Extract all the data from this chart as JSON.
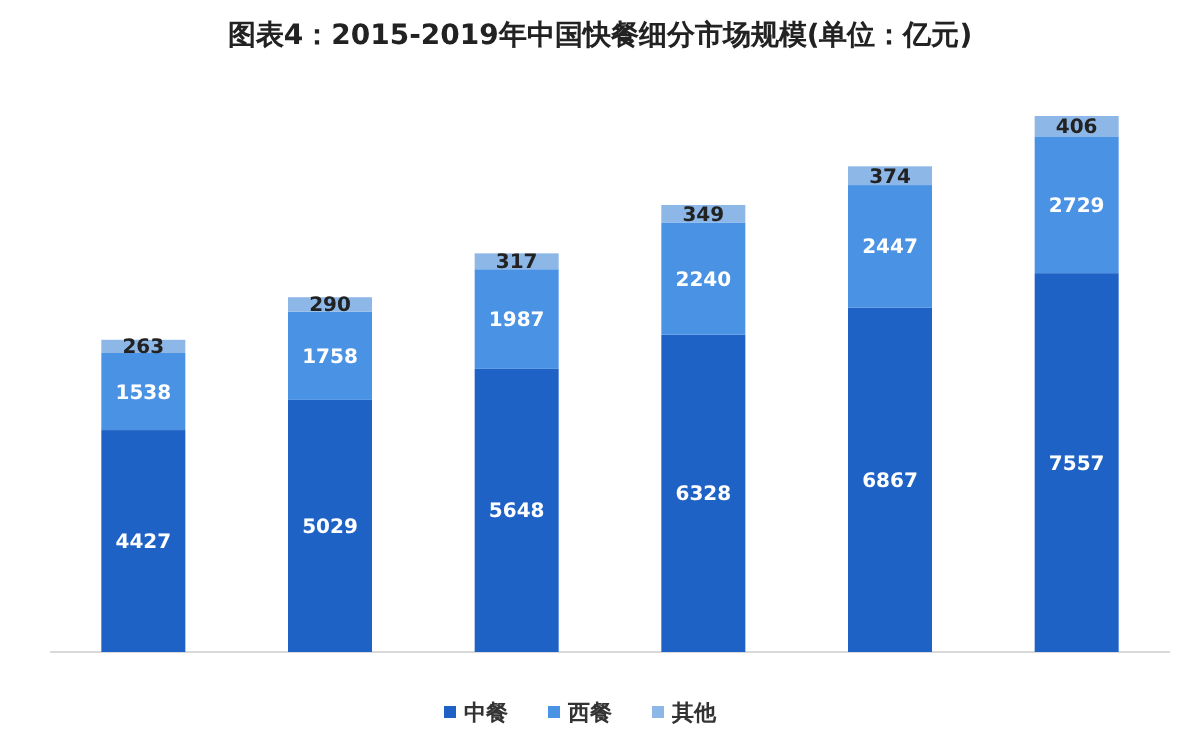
{
  "chart_data": {
    "type": "bar",
    "stacked": true,
    "data_labels": true,
    "legend": "bottom",
    "title": "图表4：2015-2019年中国快餐细分市场规模(单位：亿元)",
    "categories": [
      null,
      null,
      null,
      null,
      null,
      null
    ],
    "series": [
      {
        "name": "中餐",
        "color": "#1f62c6",
        "values": [
          4427,
          5029,
          5648,
          6328,
          6867,
          7557
        ]
      },
      {
        "name": "西餐",
        "color": "#4a92e4",
        "values": [
          1538,
          1758,
          1987,
          2240,
          2447,
          2729
        ]
      },
      {
        "name": "其他",
        "color": "#8db7e6",
        "values": [
          263,
          290,
          317,
          349,
          374,
          406
        ]
      }
    ]
  }
}
